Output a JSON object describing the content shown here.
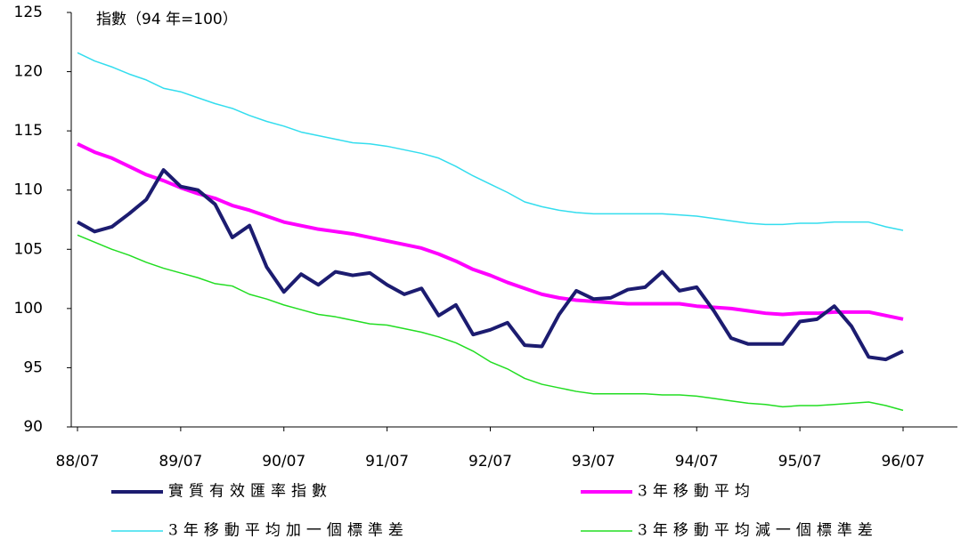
{
  "chart_data": {
    "type": "line",
    "annotation": "指數（94 年=100）",
    "categories": [
      "88/07",
      null,
      null,
      null,
      null,
      null,
      "89/07",
      null,
      null,
      null,
      null,
      null,
      "90/07",
      null,
      null,
      null,
      null,
      null,
      "91/07",
      null,
      null,
      null,
      null,
      null,
      "92/07",
      null,
      null,
      null,
      null,
      null,
      "93/07",
      null,
      null,
      null,
      null,
      null,
      "94/07",
      null,
      null,
      null,
      null,
      null,
      "95/07",
      null,
      null,
      null,
      null,
      null,
      "96/07"
    ],
    "series": [
      {
        "name": "實質有效匯率指數",
        "color": "#1c1c70",
        "width": 4,
        "values": [
          107.3,
          106.5,
          106.9,
          108.0,
          109.2,
          111.7,
          110.3,
          110.0,
          108.8,
          106.0,
          107.0,
          103.5,
          101.4,
          102.9,
          102.0,
          103.1,
          102.8,
          103.0,
          102.0,
          101.2,
          101.7,
          99.4,
          100.3,
          97.8,
          98.2,
          98.8,
          96.9,
          96.8,
          99.5,
          101.5,
          100.8,
          100.9,
          101.6,
          101.8,
          103.1,
          101.5,
          101.8,
          99.8,
          97.5,
          97.0,
          97.0,
          97.0,
          98.9,
          99.1,
          100.2,
          98.5,
          95.9,
          95.7,
          96.4
        ]
      },
      {
        "name": "3年移動平均",
        "color": "#ff00ff",
        "width": 4,
        "values": [
          113.9,
          113.2,
          112.7,
          112.0,
          111.3,
          110.8,
          110.2,
          109.7,
          109.3,
          108.7,
          108.3,
          107.8,
          107.3,
          107.0,
          106.7,
          106.5,
          106.3,
          106.0,
          105.7,
          105.4,
          105.1,
          104.6,
          104.0,
          103.3,
          102.8,
          102.2,
          101.7,
          101.2,
          100.9,
          100.7,
          100.6,
          100.5,
          100.4,
          100.4,
          100.4,
          100.4,
          100.2,
          100.1,
          100.0,
          99.8,
          99.6,
          99.5,
          99.6,
          99.6,
          99.7,
          99.7,
          99.7,
          99.4,
          99.1
        ]
      },
      {
        "name": "3年移動平均加一個標準差",
        "color": "#33ddee",
        "width": 1.5,
        "values": [
          121.6,
          120.9,
          120.4,
          119.8,
          119.3,
          118.6,
          118.3,
          117.8,
          117.3,
          116.9,
          116.3,
          115.8,
          115.4,
          114.9,
          114.6,
          114.3,
          114.0,
          113.9,
          113.7,
          113.4,
          113.1,
          112.7,
          112.0,
          111.2,
          110.5,
          109.8,
          109.0,
          108.6,
          108.3,
          108.1,
          108.0,
          108.0,
          108.0,
          108.0,
          108.0,
          107.9,
          107.8,
          107.6,
          107.4,
          107.2,
          107.1,
          107.1,
          107.2,
          107.2,
          107.3,
          107.3,
          107.3,
          106.9,
          106.6
        ]
      },
      {
        "name": "3年移動平均減一個標準差",
        "color": "#22dd22",
        "width": 1.5,
        "values": [
          106.2,
          105.6,
          105.0,
          104.5,
          103.9,
          103.4,
          103.0,
          102.6,
          102.1,
          101.9,
          101.2,
          100.8,
          100.3,
          99.9,
          99.5,
          99.3,
          99.0,
          98.7,
          98.6,
          98.3,
          98.0,
          97.6,
          97.1,
          96.4,
          95.5,
          94.9,
          94.1,
          93.6,
          93.3,
          93.0,
          92.8,
          92.8,
          92.8,
          92.8,
          92.7,
          92.7,
          92.6,
          92.4,
          92.2,
          92.0,
          91.9,
          91.7,
          91.8,
          91.8,
          91.9,
          92.0,
          92.1,
          91.8,
          91.4
        ]
      }
    ],
    "ylim": [
      90,
      125
    ],
    "yticks": [
      90,
      95,
      100,
      105,
      110,
      115,
      120,
      125
    ]
  }
}
